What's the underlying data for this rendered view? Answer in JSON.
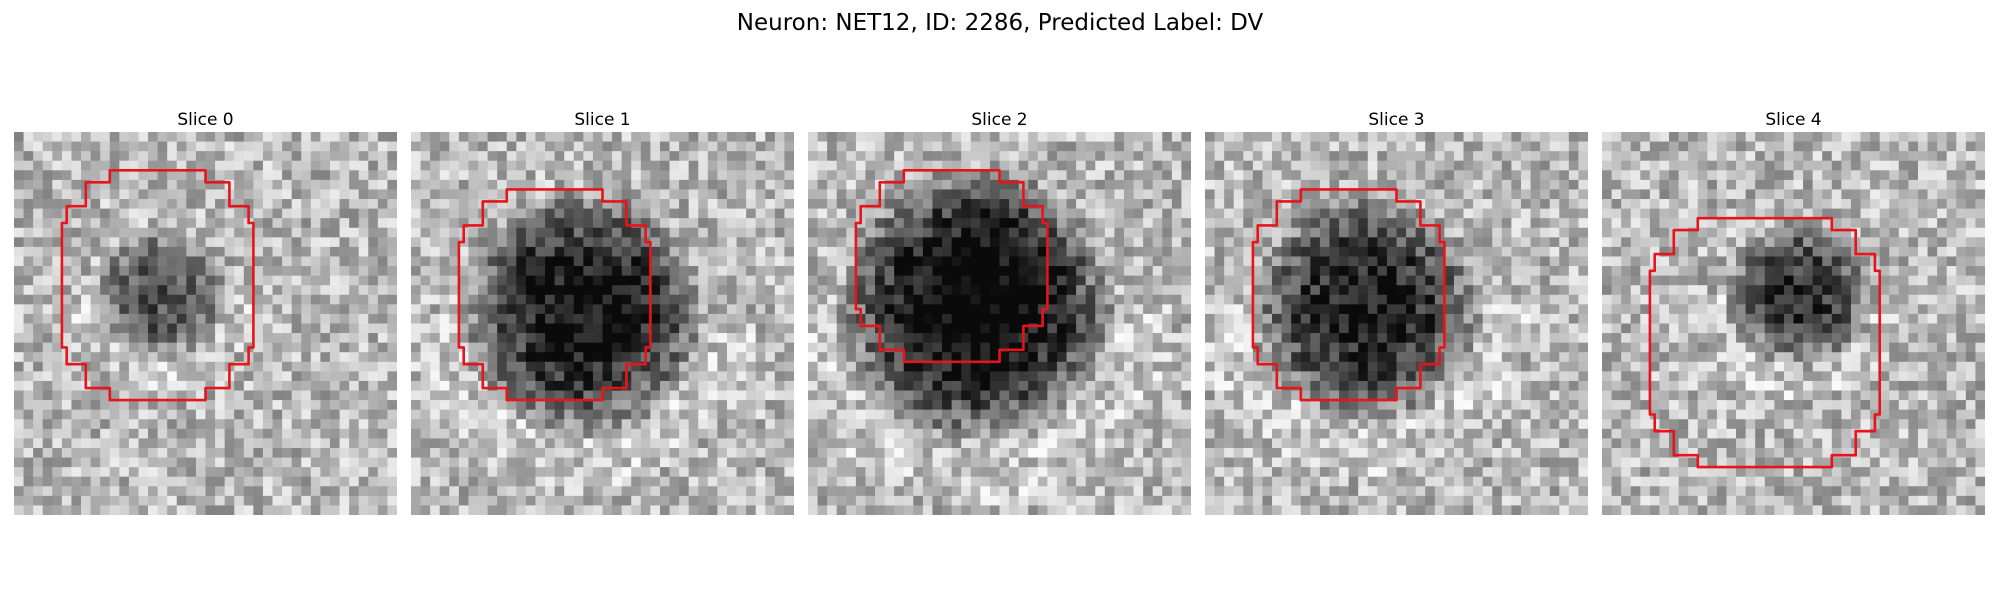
{
  "figure": {
    "title": "Neuron: NET12, ID: 2286, Predicted Label: DV"
  },
  "panels": [
    {
      "label": "Slice 0",
      "blob_center": [
        0.38,
        0.42
      ],
      "blob_radius": 0.18,
      "blob_strength": 0.45,
      "mask_box_cells": [
        5,
        4,
        25,
        28
      ],
      "seed": 11
    },
    {
      "label": "Slice 1",
      "blob_center": [
        0.45,
        0.47
      ],
      "blob_radius": 0.33,
      "blob_strength": 0.7,
      "mask_box_cells": [
        5,
        6,
        25,
        28
      ],
      "seed": 23
    },
    {
      "label": "Slice 2",
      "blob_center": [
        0.44,
        0.45
      ],
      "blob_radius": 0.37,
      "blob_strength": 0.8,
      "mask_box_cells": [
        5,
        4,
        25,
        24
      ],
      "seed": 37
    },
    {
      "label": "Slice 3",
      "blob_center": [
        0.42,
        0.46
      ],
      "blob_radius": 0.31,
      "blob_strength": 0.65,
      "mask_box_cells": [
        5,
        6,
        25,
        28
      ],
      "seed": 41
    },
    {
      "label": "Slice 4",
      "blob_center": [
        0.52,
        0.42
      ],
      "blob_radius": 0.2,
      "blob_strength": 0.55,
      "mask_box_cells": [
        5,
        9,
        29,
        35
      ],
      "seed": 53
    }
  ],
  "grid_cells": 40,
  "mask_color": "#e8141b"
}
